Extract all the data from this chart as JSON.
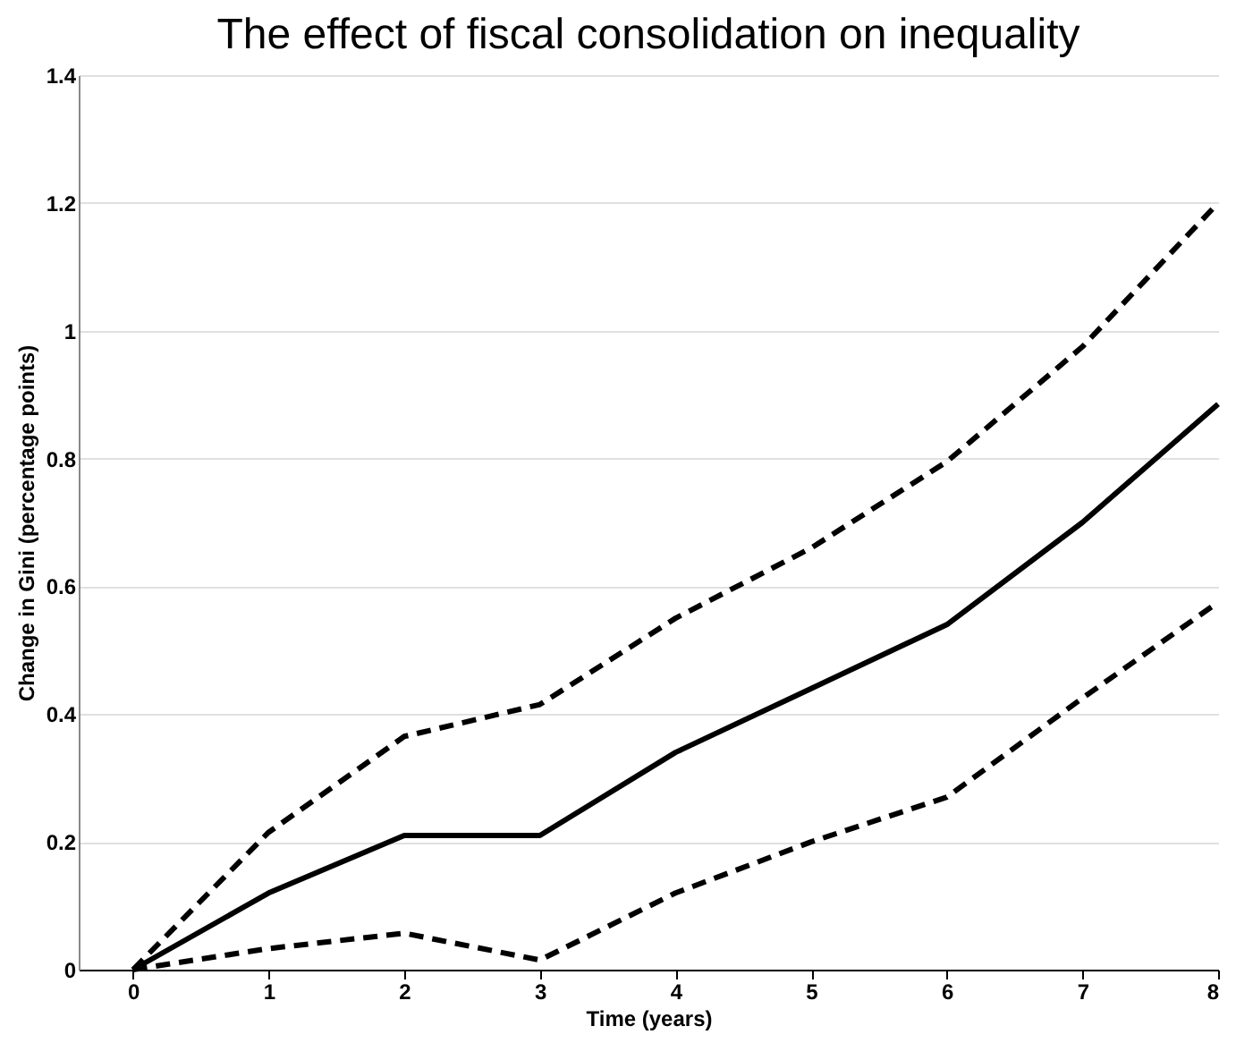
{
  "chart_data": {
    "type": "line",
    "title": "The effect of fiscal consolidation on inequality",
    "xlabel": "Time (years)",
    "ylabel": "Change in Gini (percentage points)",
    "x": [
      0,
      1,
      2,
      3,
      4,
      5,
      6,
      7,
      8
    ],
    "series": [
      {
        "color": "#000000",
        "line_style": "solid",
        "values": [
          0,
          0.12,
          0.21,
          0.21,
          0.34,
          0.44,
          0.54,
          0.7,
          0.885
        ]
      },
      {
        "color": "#000000",
        "line_style": "dashed",
        "values": [
          0,
          0.215,
          0.365,
          0.415,
          0.55,
          0.66,
          0.795,
          0.975,
          1.2
        ]
      },
      {
        "color": "#000000",
        "line_style": "dashed",
        "values": [
          0,
          0.033,
          0.057,
          0.015,
          0.12,
          0.2,
          0.27,
          0.425,
          0.575
        ]
      }
    ],
    "xlim": [
      -0.4,
      8
    ],
    "xticks": [
      0,
      1,
      2,
      3,
      4,
      5,
      6,
      7,
      8
    ],
    "ylim": [
      0,
      1.4
    ],
    "yticks": [
      0,
      0.2,
      0.4,
      0.6,
      0.8,
      1,
      1.2,
      1.4
    ],
    "grid": "y",
    "marker": "none"
  }
}
